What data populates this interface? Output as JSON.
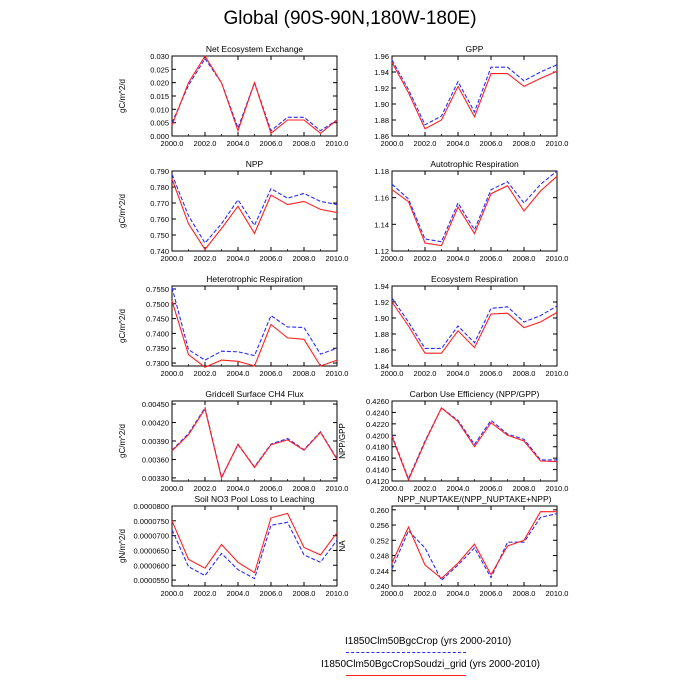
{
  "title": "Global (90S-90N,180W-180E)",
  "legend": {
    "entries": [
      {
        "label": "I1850Clm50BgcCrop (yrs 2000-2010)",
        "color": "#2b2bff",
        "style": "dashed"
      },
      {
        "label": "I1850Clm50BgcCropSoudzi_grid (yrs 2000-2010)",
        "color": "#ff2020",
        "style": "solid"
      }
    ]
  },
  "chart_data": [
    {
      "type": "line",
      "title": "Net Ecosystem Exchange",
      "ylabel": "gC/m^2/d",
      "x": [
        2000,
        2001,
        2002,
        2003,
        2004,
        2005,
        2006,
        2007,
        2008,
        2009,
        2010
      ],
      "xlim": [
        2000,
        2010
      ],
      "xticks": [
        "2000.0",
        "2002.0",
        "2004.0",
        "2006.0",
        "2008.0",
        "2010.0"
      ],
      "ylim": [
        0.0,
        0.03
      ],
      "yticks": [
        "0.000",
        "0.005",
        "0.010",
        "0.015",
        "0.020",
        "0.025",
        "0.030"
      ],
      "series": [
        {
          "name": "I1850Clm50BgcCrop (yrs 2000-2010)",
          "values": [
            0.005,
            0.019,
            0.029,
            0.02,
            0.003,
            0.02,
            0.002,
            0.007,
            0.007,
            0.002,
            0.006
          ]
        },
        {
          "name": "I1850Clm50BgcCropSoudzi_grid (yrs 2000-2010)",
          "values": [
            0.004,
            0.02,
            0.03,
            0.02,
            0.002,
            0.02,
            0.001,
            0.006,
            0.006,
            0.001,
            0.006
          ]
        }
      ]
    },
    {
      "type": "line",
      "title": "GPP",
      "ylabel": "",
      "x": [
        2000,
        2001,
        2002,
        2003,
        2004,
        2005,
        2006,
        2007,
        2008,
        2009,
        2010
      ],
      "xlim": [
        2000,
        2010
      ],
      "xticks": [
        "2000.0",
        "2002.0",
        "2004.0",
        "2006.0",
        "2008.0",
        "2010.0"
      ],
      "ylim": [
        1.86,
        1.96
      ],
      "yticks": [
        "1.86",
        "1.88",
        "1.90",
        "1.92",
        "1.94",
        "1.96"
      ],
      "series": [
        {
          "name": "I1850Clm50BgcCrop (yrs 2000-2010)",
          "values": [
            1.955,
            1.918,
            1.874,
            1.885,
            1.928,
            1.89,
            1.946,
            1.946,
            1.929,
            1.94,
            1.949
          ]
        },
        {
          "name": "I1850Clm50BgcCropSoudzi_grid (yrs 2000-2010)",
          "values": [
            1.952,
            1.914,
            1.869,
            1.88,
            1.922,
            1.884,
            1.938,
            1.938,
            1.922,
            1.932,
            1.941
          ]
        }
      ]
    },
    {
      "type": "line",
      "title": "NPP",
      "ylabel": "gC/m^2/d",
      "x": [
        2000,
        2001,
        2002,
        2003,
        2004,
        2005,
        2006,
        2007,
        2008,
        2009,
        2010
      ],
      "xlim": [
        2000,
        2010
      ],
      "xticks": [
        "2000.0",
        "2002.0",
        "2004.0",
        "2006.0",
        "2008.0",
        "2010.0"
      ],
      "ylim": [
        0.74,
        0.79
      ],
      "yticks": [
        "0.740",
        "0.750",
        "0.760",
        "0.770",
        "0.780",
        "0.790"
      ],
      "series": [
        {
          "name": "I1850Clm50BgcCrop (yrs 2000-2010)",
          "values": [
            0.788,
            0.762,
            0.745,
            0.757,
            0.772,
            0.756,
            0.779,
            0.773,
            0.776,
            0.771,
            0.769
          ]
        },
        {
          "name": "I1850Clm50BgcCropSoudzi_grid (yrs 2000-2010)",
          "values": [
            0.785,
            0.757,
            0.741,
            0.754,
            0.768,
            0.751,
            0.775,
            0.769,
            0.771,
            0.766,
            0.764
          ]
        }
      ]
    },
    {
      "type": "line",
      "title": "Autotrophic Respiration",
      "ylabel": "",
      "x": [
        2000,
        2001,
        2002,
        2003,
        2004,
        2005,
        2006,
        2007,
        2008,
        2009,
        2010
      ],
      "xlim": [
        2000,
        2010
      ],
      "xticks": [
        "2000.0",
        "2002.0",
        "2004.0",
        "2006.0",
        "2008.0",
        "2010.0"
      ],
      "ylim": [
        1.12,
        1.18
      ],
      "yticks": [
        "1.12",
        "1.14",
        "1.16",
        "1.18"
      ],
      "series": [
        {
          "name": "I1850Clm50BgcCrop (yrs 2000-2010)",
          "values": [
            1.17,
            1.159,
            1.129,
            1.127,
            1.156,
            1.136,
            1.166,
            1.172,
            1.156,
            1.17,
            1.18
          ]
        },
        {
          "name": "I1850Clm50BgcCropSoudzi_grid (yrs 2000-2010)",
          "values": [
            1.166,
            1.157,
            1.126,
            1.124,
            1.153,
            1.133,
            1.163,
            1.169,
            1.15,
            1.165,
            1.176
          ]
        }
      ]
    },
    {
      "type": "line",
      "title": "Heterotrophic Respiration",
      "ylabel": "gC/m^2/d",
      "x": [
        2000,
        2001,
        2002,
        2003,
        2004,
        2005,
        2006,
        2007,
        2008,
        2009,
        2010
      ],
      "xlim": [
        2000,
        2010
      ],
      "xticks": [
        "2000.0",
        "2002.0",
        "2004.0",
        "2006.0",
        "2008.0",
        "2010.0"
      ],
      "ylim": [
        0.729,
        0.756
      ],
      "yticks": [
        "0.7300",
        "0.7350",
        "0.7400",
        "0.7450",
        "0.7500",
        "0.7550"
      ],
      "series": [
        {
          "name": "I1850Clm50BgcCrop (yrs 2000-2010)",
          "values": [
            0.7555,
            0.7345,
            0.731,
            0.734,
            0.7338,
            0.7325,
            0.746,
            0.7422,
            0.742,
            0.733,
            0.735
          ]
        },
        {
          "name": "I1850Clm50BgcCropSoudzi_grid (yrs 2000-2010)",
          "values": [
            0.751,
            0.7328,
            0.7286,
            0.731,
            0.7306,
            0.729,
            0.743,
            0.7385,
            0.738,
            0.729,
            0.731
          ]
        }
      ]
    },
    {
      "type": "line",
      "title": "Ecosystem Respiration",
      "ylabel": "",
      "x": [
        2000,
        2001,
        2002,
        2003,
        2004,
        2005,
        2006,
        2007,
        2008,
        2009,
        2010
      ],
      "xlim": [
        2000,
        2010
      ],
      "xticks": [
        "2000.0",
        "2002.0",
        "2004.0",
        "2006.0",
        "2008.0",
        "2010.0"
      ],
      "ylim": [
        1.84,
        1.94
      ],
      "yticks": [
        "1.84",
        "1.86",
        "1.88",
        "1.90",
        "1.92",
        "1.94"
      ],
      "series": [
        {
          "name": "I1850Clm50BgcCrop (yrs 2000-2010)",
          "values": [
            1.925,
            1.895,
            1.862,
            1.862,
            1.89,
            1.869,
            1.912,
            1.914,
            1.895,
            1.903,
            1.915
          ]
        },
        {
          "name": "I1850Clm50BgcCropSoudzi_grid (yrs 2000-2010)",
          "values": [
            1.92,
            1.89,
            1.856,
            1.856,
            1.884,
            1.863,
            1.905,
            1.906,
            1.888,
            1.895,
            1.907
          ]
        }
      ]
    },
    {
      "type": "line",
      "title": "Gridcell Surface CH4 Flux",
      "ylabel": "gC/m^2/d",
      "x": [
        2000,
        2001,
        2002,
        2003,
        2004,
        2005,
        2006,
        2007,
        2008,
        2009,
        2010
      ],
      "xlim": [
        2000,
        2010
      ],
      "xticks": [
        "2000.0",
        "2002.0",
        "2004.0",
        "2006.0",
        "2008.0",
        "2010.0"
      ],
      "ylim": [
        0.00325,
        0.00455
      ],
      "yticks": [
        "0.00330",
        "0.00360",
        "0.00390",
        "0.00420",
        "0.00450"
      ],
      "series": [
        {
          "name": "I1850Clm50BgcCrop (yrs 2000-2010)",
          "values": [
            0.00375,
            0.00402,
            0.00444,
            0.00331,
            0.00384,
            0.00348,
            0.00385,
            0.00394,
            0.00376,
            0.00405,
            0.00361
          ]
        },
        {
          "name": "I1850Clm50BgcCropSoudzi_grid (yrs 2000-2010)",
          "values": [
            0.00374,
            0.004,
            0.00442,
            0.0033,
            0.00385,
            0.00347,
            0.00384,
            0.00392,
            0.00375,
            0.00404,
            0.0036
          ]
        }
      ]
    },
    {
      "type": "line",
      "title": "Carbon Use Efficiency (NPP/GPP)",
      "ylabel": "NPP/GPP",
      "x": [
        2000,
        2001,
        2002,
        2003,
        2004,
        2005,
        2006,
        2007,
        2008,
        2009,
        2010
      ],
      "xlim": [
        2000,
        2010
      ],
      "xticks": [
        "2000.0",
        "2002.0",
        "2004.0",
        "2006.0",
        "2008.0",
        "2010.0"
      ],
      "ylim": [
        0.412,
        0.426
      ],
      "yticks": [
        "0.4120",
        "0.4140",
        "0.4160",
        "0.4180",
        "0.4200",
        "0.4220",
        "0.4240",
        "0.4260"
      ],
      "series": [
        {
          "name": "I1850Clm50BgcCrop (yrs 2000-2010)",
          "values": [
            0.42,
            0.4124,
            0.419,
            0.4248,
            0.4226,
            0.4184,
            0.4226,
            0.4202,
            0.4193,
            0.4157,
            0.4157
          ]
        },
        {
          "name": "I1850Clm50BgcCropSoudzi_grid (yrs 2000-2010)",
          "values": [
            0.4198,
            0.4122,
            0.4188,
            0.4248,
            0.4224,
            0.418,
            0.4222,
            0.42,
            0.419,
            0.4155,
            0.4154
          ]
        }
      ]
    },
    {
      "type": "line",
      "title": "Soil NO3 Pool Loss to Leaching",
      "ylabel": "gN/m^2/d",
      "x": [
        2000,
        2001,
        2002,
        2003,
        2004,
        2005,
        2006,
        2007,
        2008,
        2009,
        2010
      ],
      "xlim": [
        2000,
        2010
      ],
      "xticks": [
        "2000.0",
        "2002.0",
        "2004.0",
        "2006.0",
        "2008.0",
        "2010.0"
      ],
      "ylim": [
        5.3e-05,
        8e-05
      ],
      "yticks": [
        "0.0000550",
        "0.0000600",
        "0.0000650",
        "0.0000700",
        "0.0000750",
        "0.0000800"
      ],
      "series": [
        {
          "name": "I1850Clm50BgcCrop (yrs 2000-2010)",
          "values": [
            7.2e-05,
            5.95e-05,
            5.65e-05,
            6.4e-05,
            5.85e-05,
            5.55e-05,
            7.35e-05,
            7.45e-05,
            6.35e-05,
            6.1e-05,
            6.85e-05
          ]
        },
        {
          "name": "I1850Clm50BgcCropSoudzi_grid (yrs 2000-2010)",
          "values": [
            7.5e-05,
            6.2e-05,
            5.9e-05,
            6.7e-05,
            6.1e-05,
            5.75e-05,
            7.6e-05,
            7.75e-05,
            6.6e-05,
            6.35e-05,
            7.1e-05
          ]
        }
      ]
    },
    {
      "type": "line",
      "title": "NPP_NUPTAKE/(NPP_NUPTAKE+NPP)",
      "ylabel": "NA",
      "x": [
        2000,
        2001,
        2002,
        2003,
        2004,
        2005,
        2006,
        2007,
        2008,
        2009,
        2010
      ],
      "xlim": [
        2000,
        2010
      ],
      "xticks": [
        "2000.0",
        "2002.0",
        "2004.0",
        "2006.0",
        "2008.0",
        "2010.0"
      ],
      "ylim": [
        0.24,
        0.261
      ],
      "yticks": [
        "0.240",
        "0.244",
        "0.248",
        "0.252",
        "0.256",
        "0.260"
      ],
      "series": [
        {
          "name": "I1850Clm50BgcCrop (yrs 2000-2010)",
          "values": [
            0.2445,
            0.2545,
            0.25,
            0.2415,
            0.2455,
            0.25,
            0.2422,
            0.2515,
            0.2515,
            0.258,
            0.259
          ]
        },
        {
          "name": "I1850Clm50BgcCropSoudzi_grid (yrs 2000-2010)",
          "values": [
            0.246,
            0.2555,
            0.2455,
            0.242,
            0.246,
            0.251,
            0.243,
            0.2505,
            0.252,
            0.2595,
            0.2595
          ]
        }
      ]
    }
  ]
}
